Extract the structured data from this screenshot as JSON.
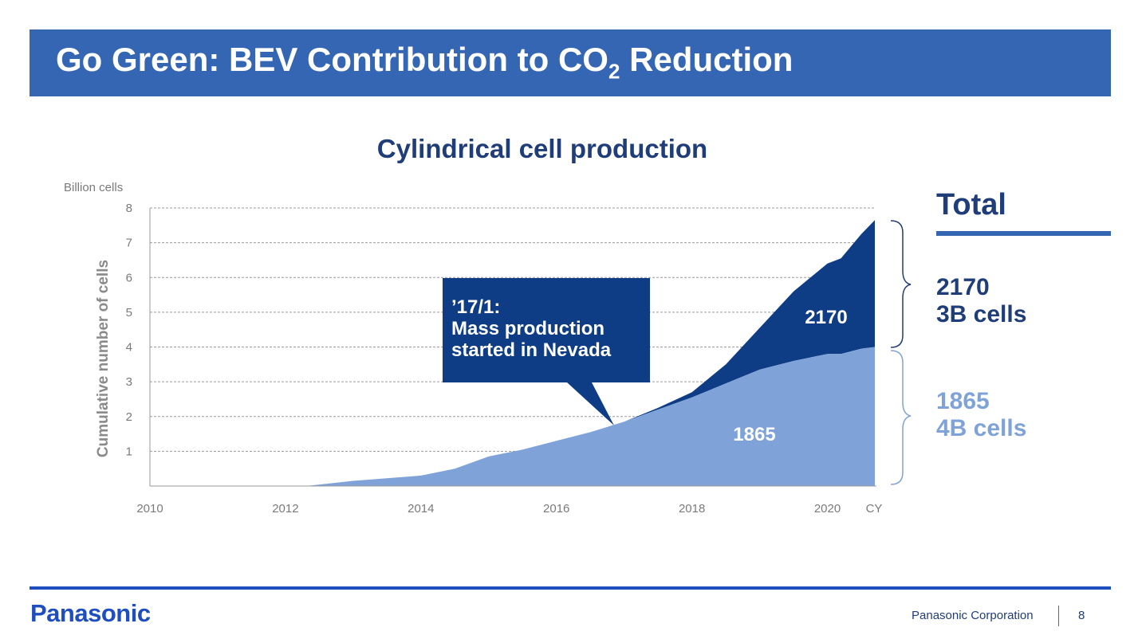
{
  "slide": {
    "title_main": "Go Green: BEV Contribution to CO",
    "title_sub": "2",
    "title_end": " Reduction",
    "page_number": "8",
    "company": "Panasonic Corporation",
    "logo": "Panasonic"
  },
  "colors": {
    "title_bar": "#3566b3",
    "navy": "#1f3d79",
    "series_2170": "#0e3d86",
    "series_1865": "#7fa3d9",
    "footer_blue": "#1f4fbf"
  },
  "legend": {
    "total": "Total",
    "s2170_line1": "2170",
    "s2170_line2": "3B cells",
    "s1865_line1": "1865",
    "s1865_line2": "4B cells"
  },
  "callout": {
    "line1": "’17/1:",
    "line2": "Mass production",
    "line3": "started in Nevada"
  },
  "chart_data": {
    "type": "area",
    "title": "Cylindrical cell production",
    "ylabel": "Cumulative number of cells",
    "yunit": "Billion cells",
    "xunit": "CY",
    "stacked": true,
    "xlim": [
      2010,
      2020.7
    ],
    "ylim": [
      0,
      8
    ],
    "yticks": [
      1,
      2,
      3,
      4,
      5,
      6,
      7,
      8
    ],
    "xticks": [
      2010,
      2012,
      2014,
      2016,
      2018,
      2020
    ],
    "grid": true,
    "series": [
      {
        "name": "1865",
        "x": [
          2010,
          2012.3,
          2013,
          2014,
          2014.5,
          2015,
          2015.5,
          2016,
          2016.5,
          2017,
          2017.5,
          2018,
          2018.5,
          2019,
          2019.5,
          2020,
          2020.2,
          2020.5,
          2020.7
        ],
        "values": [
          0,
          0,
          0.15,
          0.3,
          0.5,
          0.85,
          1.05,
          1.3,
          1.55,
          1.85,
          2.2,
          2.55,
          2.95,
          3.35,
          3.6,
          3.8,
          3.8,
          3.95,
          4.0
        ]
      },
      {
        "name": "2170",
        "x": [
          2017,
          2017.5,
          2018,
          2018.5,
          2019,
          2019.5,
          2020,
          2020.2,
          2020.5,
          2020.7
        ],
        "values": [
          0,
          0.05,
          0.15,
          0.55,
          1.2,
          2.0,
          2.6,
          2.75,
          3.3,
          3.65
        ]
      }
    ],
    "annotations": [
      "2170",
      "1865"
    ]
  }
}
